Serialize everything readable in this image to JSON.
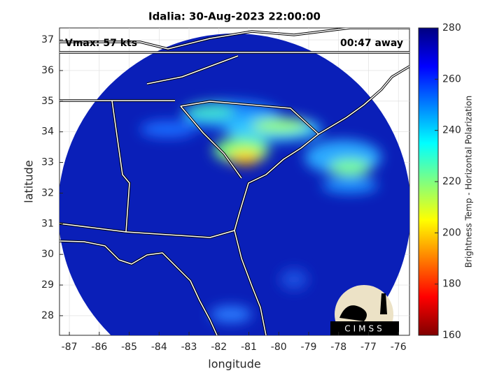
{
  "chart_data": {
    "type": "map",
    "title": "Idalia: 30-Aug-2023 22:00:00",
    "annotations": [
      "Vmax: 57 kts",
      "00:47 away"
    ],
    "xlabel": "longitude",
    "ylabel": "latitude",
    "xlim": [
      -87.33,
      -75.63
    ],
    "ylim": [
      27.36,
      37.39
    ],
    "xticks": [
      -87,
      -86,
      -85,
      -84,
      -83,
      -82,
      -81,
      -80,
      -79,
      -78,
      -77,
      -76
    ],
    "yticks": [
      28,
      29,
      30,
      31,
      32,
      33,
      34,
      35,
      36,
      37
    ],
    "grid": true,
    "colorbar": {
      "label": "Brightness Temp - Horizontal Polarization",
      "lim": [
        160,
        280
      ],
      "ticks": [
        160,
        180,
        200,
        220,
        240,
        260,
        280
      ]
    },
    "logo": "CIMSS"
  }
}
